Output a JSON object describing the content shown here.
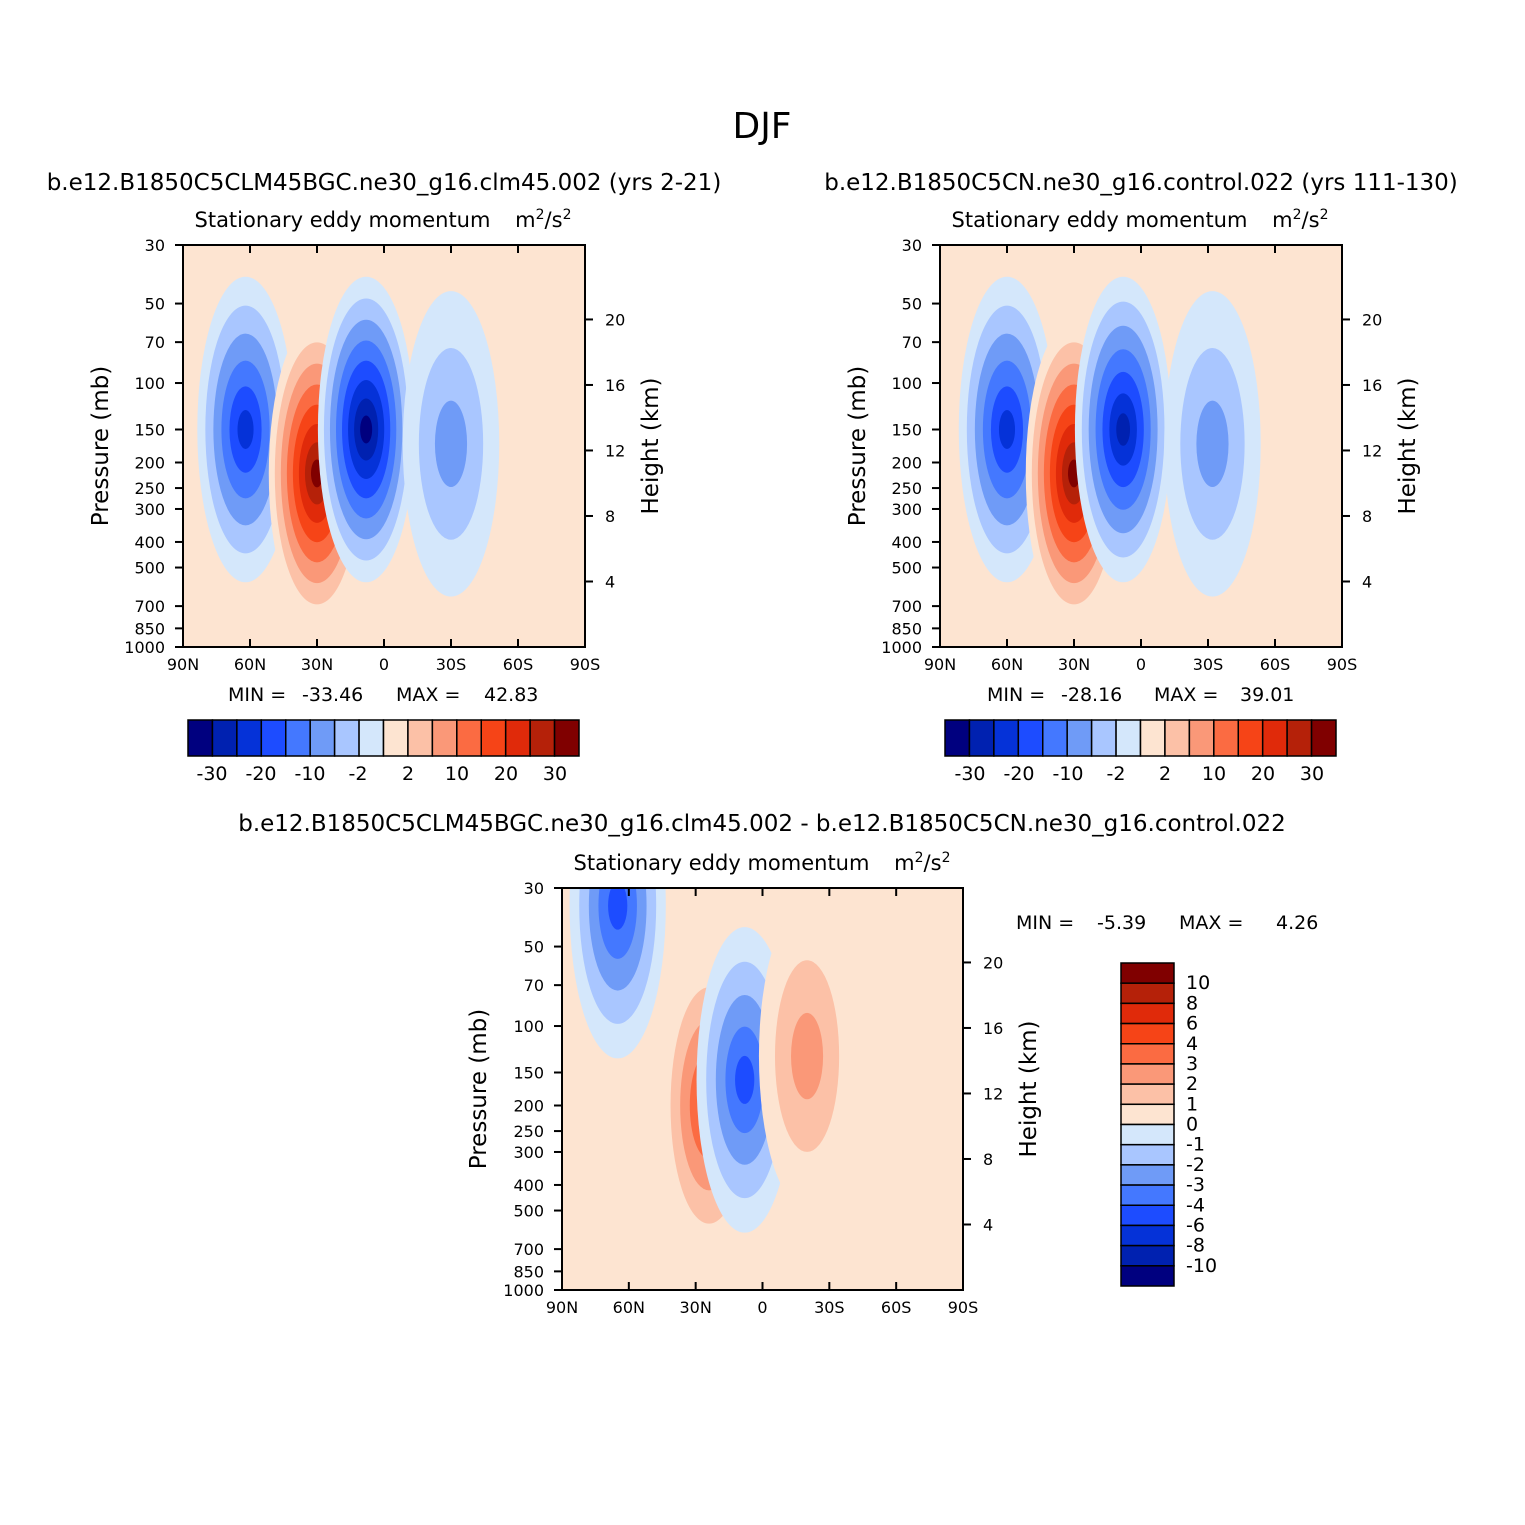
{
  "page_title": "DJF",
  "colors": {
    "abs": [
      "#00007f",
      "#0021b0",
      "#0532d8",
      "#1d4cff",
      "#4478ff",
      "#6f9bf7",
      "#a9c6ff",
      "#d4e7fb",
      "#fde4d1",
      "#fcc1a7",
      "#fa9878",
      "#fb6b42",
      "#f64417",
      "#e02a0a",
      "#b52109",
      "#800000"
    ],
    "diff": [
      "#00007f",
      "#0021b0",
      "#0532d8",
      "#1d4cff",
      "#4478ff",
      "#6f9bf7",
      "#a9c6ff",
      "#d4e7fb",
      "#fde4d1",
      "#fcc1a7",
      "#fa9878",
      "#fb6b42",
      "#f64417",
      "#e02a0a",
      "#b52109",
      "#800000"
    ]
  },
  "panels": [
    {
      "case": "b.e12.B1850C5CLM45BGC.ne30_g16.clm45.002 (yrs 2-21)",
      "title": "Stationary eddy momentum",
      "units_base": "m",
      "units_sup1": "2",
      "units_mid": "/s",
      "units_sup2": "2",
      "ylabel": "Pressure (mb)",
      "y2label": "Height (km)",
      "min_label": "MIN =",
      "min_value": "-33.46",
      "max_label": "MAX =",
      "max_value": "42.83"
    },
    {
      "case": "b.e12.B1850C5CN.ne30_g16.control.022 (yrs 111-130)",
      "title": "Stationary eddy momentum",
      "units_base": "m",
      "units_sup1": "2",
      "units_mid": "/s",
      "units_sup2": "2",
      "ylabel": "Pressure (mb)",
      "y2label": "Height (km)",
      "min_label": "MIN =",
      "min_value": "-28.16",
      "max_label": "MAX =",
      "max_value": "39.01"
    },
    {
      "case": "b.e12.B1850C5CLM45BGC.ne30_g16.clm45.002 - b.e12.B1850C5CN.ne30_g16.control.022",
      "title": "Stationary eddy momentum",
      "units_base": "m",
      "units_sup1": "2",
      "units_mid": "/s",
      "units_sup2": "2",
      "ylabel": "Pressure (mb)",
      "y2label": "Height (km)",
      "min_label": "MIN =",
      "min_value": "-5.39",
      "max_label": "MAX =",
      "max_value": "4.26"
    }
  ],
  "chart_data": [
    {
      "type": "heatmap",
      "title": "Stationary eddy momentum m²/s²",
      "xlabel": "",
      "ylabel": "Pressure (mb)",
      "y2label": "Height (km)",
      "x_ticks": [
        "90N",
        "60N",
        "30N",
        "0",
        "30S",
        "60S",
        "90S"
      ],
      "x_range": [
        90,
        -90
      ],
      "y_ticks": [
        30,
        50,
        70,
        100,
        150,
        200,
        250,
        300,
        400,
        500,
        700,
        850,
        1000
      ],
      "y_range_mb": [
        30,
        1000
      ],
      "y2_ticks": [
        20,
        16,
        12,
        8,
        4
      ],
      "levels": [
        -30,
        -25,
        -20,
        -15,
        -10,
        -5,
        -2,
        0,
        2,
        5,
        10,
        15,
        20,
        25,
        30
      ],
      "colorbar_labels": [
        "-30",
        "-20",
        "-10",
        "-2",
        "2",
        "10",
        "20",
        "30"
      ],
      "min": -33.46,
      "max": 42.83,
      "features": [
        {
          "lat": 62,
          "p_mb": 150,
          "value": -25,
          "desc": "negative lobe"
        },
        {
          "lat": 30,
          "p_mb": 220,
          "value": 42.83,
          "desc": "positive maximum"
        },
        {
          "lat": 8,
          "p_mb": 150,
          "value": -33.46,
          "desc": "negative minimum"
        },
        {
          "lat": -30,
          "p_mb": 170,
          "value": -6,
          "desc": "weak negative"
        }
      ]
    },
    {
      "type": "heatmap",
      "title": "Stationary eddy momentum m²/s²",
      "xlabel": "",
      "ylabel": "Pressure (mb)",
      "y2label": "Height (km)",
      "x_ticks": [
        "90N",
        "60N",
        "30N",
        "0",
        "30S",
        "60S",
        "90S"
      ],
      "x_range": [
        90,
        -90
      ],
      "y_ticks": [
        30,
        50,
        70,
        100,
        150,
        200,
        250,
        300,
        400,
        500,
        700,
        850,
        1000
      ],
      "y_range_mb": [
        30,
        1000
      ],
      "y2_ticks": [
        20,
        16,
        12,
        8,
        4
      ],
      "levels": [
        -30,
        -25,
        -20,
        -15,
        -10,
        -5,
        -2,
        0,
        2,
        5,
        10,
        15,
        20,
        25,
        30
      ],
      "colorbar_labels": [
        "-30",
        "-20",
        "-10",
        "-2",
        "2",
        "10",
        "20",
        "30"
      ],
      "min": -28.16,
      "max": 39.01,
      "features": [
        {
          "lat": 60,
          "p_mb": 150,
          "value": -22,
          "desc": "negative lobe"
        },
        {
          "lat": 30,
          "p_mb": 220,
          "value": 39.01,
          "desc": "positive maximum"
        },
        {
          "lat": 8,
          "p_mb": 150,
          "value": -28.16,
          "desc": "negative minimum"
        },
        {
          "lat": -32,
          "p_mb": 170,
          "value": -6,
          "desc": "weak negative"
        }
      ]
    },
    {
      "type": "heatmap",
      "title": "Stationary eddy momentum m²/s²",
      "xlabel": "",
      "ylabel": "Pressure (mb)",
      "y2label": "Height (km)",
      "x_ticks": [
        "90N",
        "60N",
        "30N",
        "0",
        "30S",
        "60S",
        "90S"
      ],
      "x_range": [
        90,
        -90
      ],
      "y_ticks": [
        30,
        50,
        70,
        100,
        150,
        200,
        250,
        300,
        400,
        500,
        700,
        850,
        1000
      ],
      "y_range_mb": [
        30,
        1000
      ],
      "y2_ticks": [
        20,
        16,
        12,
        8,
        4
      ],
      "levels": [
        -10,
        -8,
        -6,
        -4,
        -3,
        -2,
        -1,
        0,
        1,
        2,
        3,
        4,
        6,
        8,
        10
      ],
      "colorbar_labels": [
        "10",
        "8",
        "6",
        "4",
        "3",
        "2",
        "1",
        "0",
        "-1",
        "-2",
        "-3",
        "-4",
        "-6",
        "-8",
        "-10"
      ],
      "min": -5.39,
      "max": 4.26,
      "features": [
        {
          "lat": 65,
          "p_mb": 35,
          "value": -5.39,
          "desc": "high-latitude negative"
        },
        {
          "lat": 24,
          "p_mb": 200,
          "value": 4.26,
          "desc": "positive maximum"
        },
        {
          "lat": 8,
          "p_mb": 160,
          "value": -4.5,
          "desc": "negative center"
        },
        {
          "lat": -20,
          "p_mb": 130,
          "value": 2,
          "desc": "weak positive"
        }
      ]
    }
  ]
}
